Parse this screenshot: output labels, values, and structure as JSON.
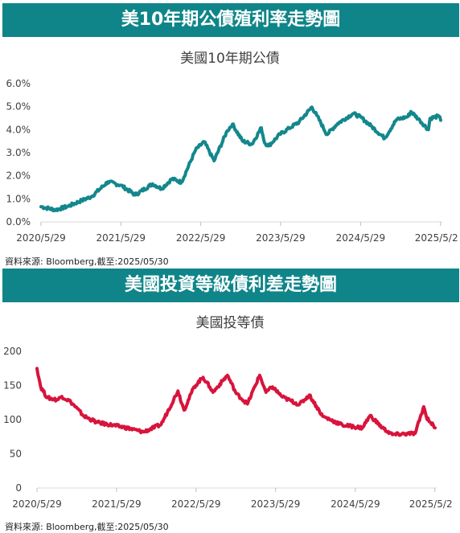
{
  "header1": "美10年期公債殖利率走勢圖",
  "header2": "美國投資等級債利差走勢圖",
  "source1": "資料來源: Bloomberg,截至:2025/05/30",
  "source2": "資料來源: Bloomberg,截至:2025/05/30",
  "colors": {
    "banner": "#0f8589",
    "line1": "#13878c",
    "line2": "#d8143c"
  },
  "chart_data": [
    {
      "type": "line",
      "title": "美國10年期公債",
      "x_ticks": [
        "2020/5/29",
        "2021/5/29",
        "2022/5/29",
        "2023/5/29",
        "2024/5/29",
        "2025/5/2"
      ],
      "y_ticks": [
        "0.0%",
        "1.0%",
        "2.0%",
        "3.0%",
        "4.0%",
        "5.0%",
        "6.0%"
      ],
      "ylim": [
        0,
        6
      ],
      "xlim": [
        "2020-05-29",
        "2025-05-30"
      ],
      "grid": false,
      "series": [
        {
          "x": [
            "2020-05-29",
            "2020-08-04",
            "2020-10-01",
            "2020-12-01",
            "2021-01-15",
            "2021-03-31",
            "2021-05-29",
            "2021-08-03",
            "2021-10-21",
            "2021-12-01",
            "2022-01-18",
            "2022-03-02",
            "2022-05-06",
            "2022-06-14",
            "2022-07-29",
            "2022-09-27",
            "2022-10-21",
            "2022-12-06",
            "2023-01-18",
            "2023-03-02",
            "2023-03-17",
            "2023-04-05",
            "2023-05-26",
            "2023-07-07",
            "2023-08-22",
            "2023-10-19",
            "2023-11-10",
            "2023-12-27",
            "2024-02-14",
            "2024-04-25",
            "2024-05-29",
            "2024-07-16",
            "2024-09-16",
            "2024-11-08",
            "2024-12-31",
            "2025-01-14",
            "2025-02-24",
            "2025-04-04",
            "2025-04-11",
            "2025-05-21",
            "2025-05-30"
          ],
          "y": [
            0.66,
            0.52,
            0.68,
            0.93,
            1.1,
            1.74,
            1.59,
            1.17,
            1.65,
            1.44,
            1.87,
            1.72,
            3.13,
            3.48,
            2.65,
            3.95,
            4.24,
            3.51,
            3.37,
            4.08,
            3.43,
            3.3,
            3.8,
            4.06,
            4.34,
            4.98,
            4.63,
            3.79,
            4.27,
            4.7,
            4.55,
            4.16,
            3.63,
            4.43,
            4.57,
            4.79,
            4.4,
            4.0,
            4.49,
            4.59,
            4.41
          ]
        }
      ]
    },
    {
      "type": "line",
      "title": "美國投等債",
      "x_ticks": [
        "2020/5/29",
        "2021/5/29",
        "2022/5/29",
        "2023/5/29",
        "2024/5/29",
        "2025/5/2"
      ],
      "y_ticks": [
        "0",
        "50",
        "100",
        "150",
        "200"
      ],
      "ylim": [
        0,
        200
      ],
      "xlim": [
        "2020-05-29",
        "2025-05-30"
      ],
      "grid": false,
      "series": [
        {
          "x": [
            "2020-05-29",
            "2020-06-15",
            "2020-07-15",
            "2020-08-31",
            "2020-09-20",
            "2020-10-31",
            "2020-12-31",
            "2021-02-28",
            "2021-06-30",
            "2021-09-30",
            "2021-12-20",
            "2022-03-07",
            "2022-04-04",
            "2022-05-20",
            "2022-06-30",
            "2022-07-31",
            "2022-08-15",
            "2022-10-20",
            "2022-11-30",
            "2023-01-20",
            "2023-03-17",
            "2023-04-15",
            "2023-05-15",
            "2023-06-30",
            "2023-09-15",
            "2023-10-31",
            "2023-12-31",
            "2024-03-31",
            "2024-06-30",
            "2024-08-05",
            "2024-09-30",
            "2024-11-15",
            "2025-02-28",
            "2025-04-08",
            "2025-04-20",
            "2025-05-30"
          ],
          "y": [
            175,
            148,
            132,
            129,
            134,
            126,
            105,
            96,
            89,
            82,
            93,
            142,
            114,
            148,
            162,
            148,
            140,
            165,
            138,
            123,
            165,
            140,
            148,
            133,
            122,
            136,
            105,
            92,
            88,
            106,
            88,
            78,
            80,
            119,
            104,
            88
          ]
        }
      ]
    }
  ]
}
